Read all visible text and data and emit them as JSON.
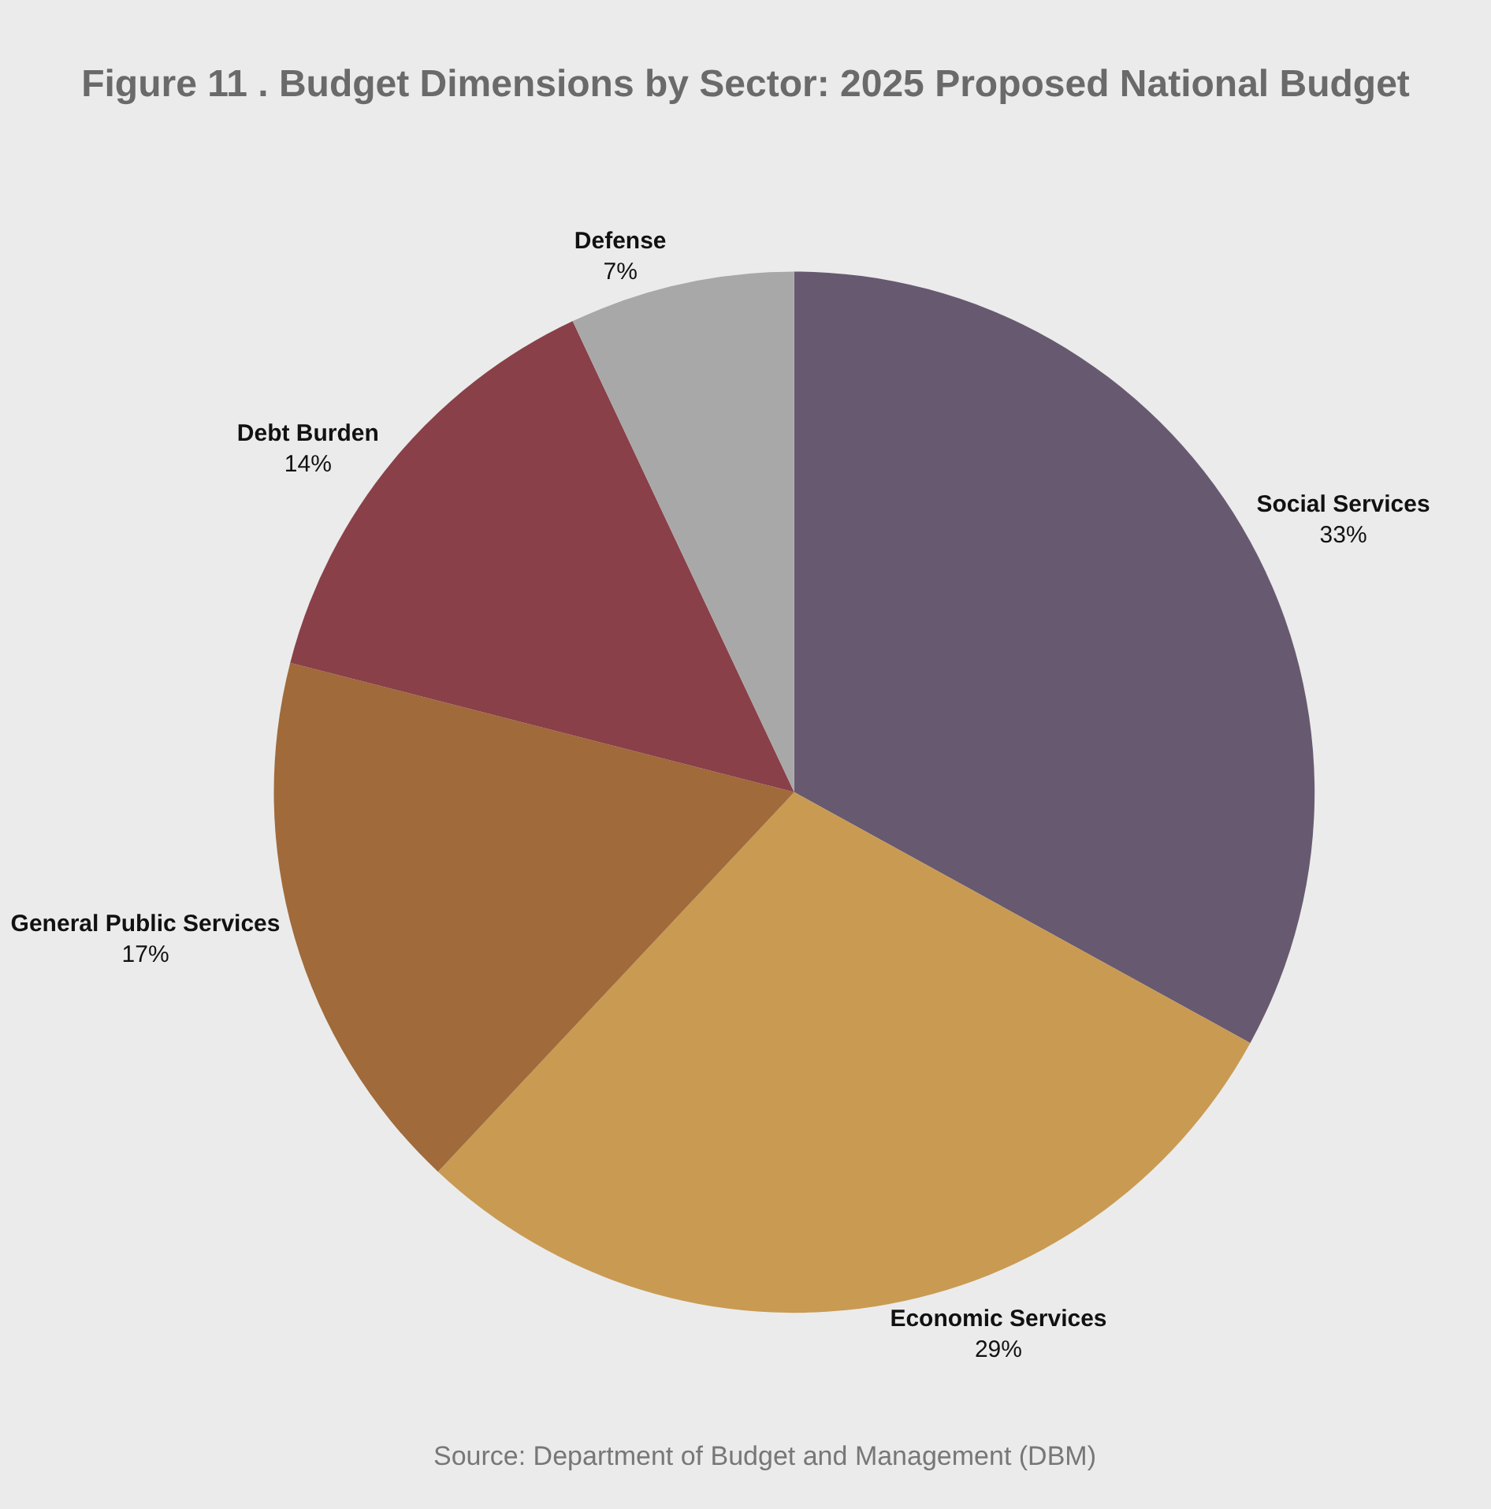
{
  "chart_data": {
    "type": "pie",
    "title": "Figure 11 . Budget Dimensions by Sector: 2025 Proposed National Budget",
    "categories": [
      "Social Services",
      "Economic Services",
      "General Public Services",
      "Debt Burden",
      "Defense"
    ],
    "values": [
      33,
      29,
      17,
      14,
      7
    ],
    "value_labels": [
      "33%",
      "29%",
      "17%",
      "14%",
      "7%"
    ],
    "colors": [
      "#675a70",
      "#c99a52",
      "#a06a3a",
      "#8a4048",
      "#a8a8a8"
    ],
    "legend": false,
    "annotations": [
      "Source: Department of Budget and Management (DBM)"
    ]
  }
}
